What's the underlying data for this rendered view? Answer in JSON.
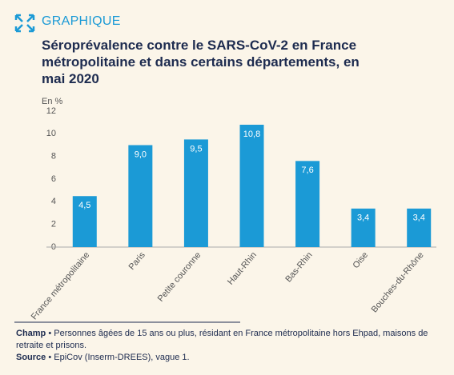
{
  "header": {
    "kicker": "GRAPHIQUE"
  },
  "chart_data": {
    "type": "bar",
    "title": "Séroprévalence contre le SARS-CoV-2 en France métropolitaine et dans certains départements, en mai 2020",
    "y_label": "En %",
    "categories": [
      "France métropolitaine",
      "Paris",
      "Petite couronne",
      "Haut-Rhin",
      "Bas-Rhin",
      "Oise",
      "Bouches-du-Rhône"
    ],
    "values": [
      4.5,
      9.0,
      9.5,
      10.8,
      7.6,
      3.4,
      3.4
    ],
    "value_labels": [
      "4,5",
      "9,0",
      "9,5",
      "10,8",
      "7,6",
      "3,4",
      "3,4"
    ],
    "color": "#1b9ad6",
    "ylim": [
      0,
      12
    ],
    "yticks": [
      0,
      2,
      4,
      6,
      8,
      10,
      12
    ],
    "grid": false
  },
  "notes": [
    {
      "label": "Champ",
      "text": "• Personnes âgées de 15 ans ou plus, résidant en France métropolitaine hors Ehpad, maisons de retraite et prisons."
    },
    {
      "label": "Source",
      "text": "• EpiCov (Inserm-DREES), vague 1."
    }
  ]
}
